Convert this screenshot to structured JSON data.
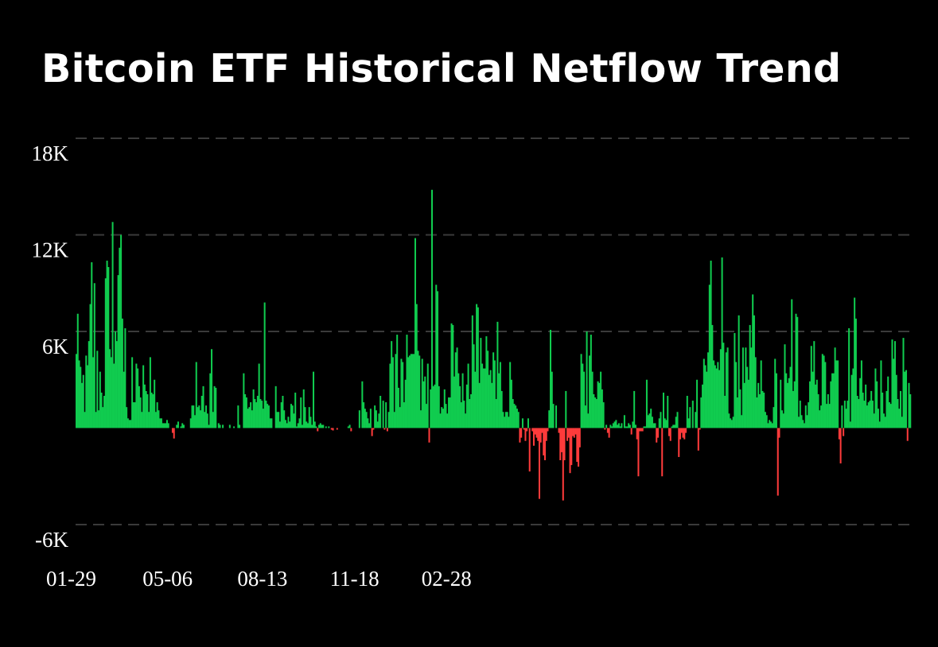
{
  "chart_data": {
    "type": "bar",
    "title": "Bitcoin ETF Historical Netflow Trend",
    "xlabel": "",
    "ylabel": "",
    "ylim": [
      -6000,
      18000
    ],
    "yticks": [
      {
        "value": 18000,
        "label": "18K"
      },
      {
        "value": 12000,
        "label": "12K"
      },
      {
        "value": 6000,
        "label": "6K"
      },
      {
        "value": -6000,
        "label": "-6K"
      }
    ],
    "xticks": [
      {
        "index": 0,
        "label": "01-29"
      },
      {
        "index": 66,
        "label": "05-06"
      },
      {
        "index": 134,
        "label": "08-13"
      },
      {
        "index": 200,
        "label": "11-18"
      },
      {
        "index": 266,
        "label": "02-28"
      }
    ],
    "grid": true,
    "colors": {
      "positive": "#10cc4f",
      "negative": "#ff3b3b",
      "grid": "#3a3a3a",
      "text": "#ffffff",
      "background": "#000000"
    },
    "series": [
      {
        "values": [
          4600,
          7100,
          4200,
          3800,
          2800,
          3300,
          1000,
          4500,
          3900,
          5400,
          7700,
          10300,
          4400,
          9000,
          1000,
          4800,
          1100,
          3500,
          2200,
          1300,
          2000,
          9300,
          10400,
          10000,
          4900,
          4400,
          12800,
          4000,
          6000,
          5400,
          9500,
          11200,
          12000,
          6800,
          3500,
          6200,
          1300,
          600,
          500,
          500,
          4400,
          1600,
          1600,
          4000,
          3700,
          2600,
          1900,
          1000,
          3900,
          2700,
          2300,
          2100,
          1000,
          4400,
          2200,
          2100,
          3000,
          1000,
          1600,
          1100,
          600,
          600,
          300,
          300,
          300,
          500,
          300,
          0,
          0,
          -300,
          -650,
          0,
          200,
          400,
          0,
          100,
          300,
          200,
          0,
          0,
          0,
          0,
          600,
          1400,
          1400,
          800,
          4100,
          1300,
          1400,
          1100,
          2000,
          2600,
          1000,
          1400,
          900,
          200,
          3400,
          4900,
          1000,
          2600,
          2500,
          0,
          300,
          200,
          0,
          200,
          0,
          0,
          0,
          0,
          200,
          0,
          0,
          100,
          0,
          0,
          1400,
          200,
          0,
          0,
          3400,
          2100,
          1900,
          1200,
          1300,
          1600,
          1100,
          2400,
          1800,
          1600,
          2000,
          4000,
          1800,
          1700,
          1200,
          7800,
          1700,
          1500,
          1400,
          600,
          600,
          0,
          0,
          2600,
          1000,
          1000,
          400,
          1600,
          2000,
          1100,
          500,
          300,
          700,
          400,
          1500,
          1400,
          900,
          2200,
          100,
          300,
          600,
          1900,
          200,
          2400,
          1300,
          400,
          300,
          1300,
          700,
          200,
          3500,
          400,
          100,
          -200,
          200,
          300,
          200,
          200,
          0,
          100,
          0,
          100,
          0,
          -100,
          -150,
          0,
          0,
          -100,
          0,
          0,
          0,
          0,
          0,
          0,
          0,
          100,
          200,
          -200,
          0,
          0,
          0,
          0,
          0,
          1100,
          0,
          2900,
          1600,
          1200,
          1000,
          600,
          300,
          1200,
          -500,
          -100,
          1400,
          1100,
          400,
          900,
          2000,
          0,
          1700,
          -100,
          1600,
          -200,
          1000,
          4000,
          5400,
          4400,
          1000,
          4600,
          5800,
          2500,
          1300,
          4300,
          4100,
          1600,
          3000,
          5800,
          4400,
          4500,
          4600,
          4600,
          4600,
          11800,
          7700,
          4800,
          4500,
          1100,
          4300,
          2900,
          3200,
          1500,
          4000,
          -900,
          2400,
          14800,
          2600,
          2700,
          8900,
          8500,
          2600,
          900,
          1300,
          1200,
          2400,
          1500,
          900,
          1900,
          1900,
          6500,
          6400,
          3200,
          4700,
          5000,
          3400,
          2600,
          1600,
          3400,
          1700,
          900,
          2700,
          4000,
          1800,
          2100,
          7000,
          5200,
          3500,
          7700,
          7500,
          2800,
          5600,
          4000,
          3700,
          3700,
          5700,
          4800,
          3300,
          3600,
          2800,
          4700,
          4200,
          1800,
          6600,
          3400,
          4100,
          2300,
          1000,
          700,
          1000,
          1000,
          700,
          4100,
          3000,
          1800,
          1500,
          1400,
          1200,
          1000,
          -900,
          -600,
          600,
          -100,
          -800,
          -200,
          600,
          -2700,
          0,
          -200,
          -1100,
          -400,
          -600,
          -800,
          -4400,
          -900,
          -300,
          -1700,
          -2000,
          -800,
          -200,
          1100,
          6100,
          3500,
          1500,
          0,
          1400,
          0,
          -300,
          -2000,
          -1500,
          -4500,
          -2000,
          2300,
          -800,
          -600,
          -2800,
          -2300,
          -500,
          -600,
          -400,
          -2100,
          -2400,
          -1200,
          4600,
          4000,
          3500,
          1400,
          6000,
          900,
          4500,
          5800,
          3500,
          2100,
          1900,
          1800,
          2900,
          2800,
          3500,
          2400,
          1600,
          -100,
          200,
          -300,
          -600,
          200,
          100,
          300,
          400,
          500,
          200,
          300,
          100,
          300,
          0,
          800,
          100,
          100,
          300,
          200,
          -400,
          400,
          2300,
          200,
          -700,
          -3000,
          -200,
          -200,
          -200,
          100,
          100,
          3000,
          800,
          900,
          1200,
          700,
          300,
          300,
          -900,
          -600,
          600,
          1000,
          -3000,
          2200,
          600,
          500,
          2000,
          -500,
          -800,
          100,
          200,
          200,
          700,
          1000,
          -1800,
          -700,
          -300,
          -600,
          -700,
          -300,
          2000,
          600,
          1300,
          0,
          1700,
          0,
          1000,
          3000,
          -1400,
          -100,
          1900,
          2700,
          4300,
          3900,
          3500,
          4700,
          8900,
          10400,
          6400,
          4200,
          3900,
          3700,
          4100,
          3600,
          4900,
          10600,
          5300,
          2000,
          4700,
          5000,
          900,
          600,
          500,
          700,
          5900,
          4100,
          1900,
          7000,
          2400,
          800,
          5000,
          2800,
          5000,
          3800,
          3000,
          6400,
          5000,
          8300,
          7000,
          4400,
          1900,
          2800,
          2100,
          4200,
          2300,
          2200,
          1000,
          800,
          300,
          500,
          400,
          300,
          1300,
          4300,
          3400,
          -4200,
          -600,
          3000,
          1100,
          900,
          5200,
          3400,
          2800,
          3100,
          3800,
          8000,
          2300,
          2900,
          7100,
          6900,
          700,
          1700,
          800,
          500,
          300,
          1400,
          800,
          1600,
          2900,
          5100,
          3500,
          5400,
          2700,
          3000,
          2100,
          1100,
          1400,
          4600,
          4500,
          4100,
          1500,
          2100,
          1500,
          2900,
          3400,
          3400,
          5000,
          4200,
          4200,
          -700,
          -2200,
          1400,
          -500,
          1700,
          1200,
          1700,
          6200,
          400,
          3300,
          3700,
          8100,
          6800,
          2000,
          1800,
          3100,
          4200,
          2200,
          1700,
          2700,
          1400,
          1600,
          1700,
          2300,
          1700,
          900,
          3700,
          2900,
          1200,
          400,
          4200,
          2200,
          900,
          700,
          2300,
          3200,
          1600,
          1500,
          5500,
          4300,
          5400,
          3300,
          1800,
          1200,
          2300,
          700,
          5600,
          3500,
          3600,
          -800,
          2800,
          2100
        ]
      }
    ]
  }
}
